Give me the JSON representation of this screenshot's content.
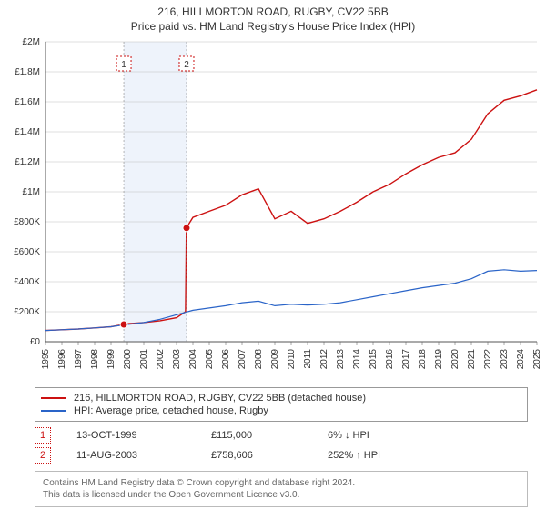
{
  "title": "216, HILLMORTON ROAD, RUGBY, CV22 5BB",
  "subtitle": "Price paid vs. HM Land Registry's House Price Index (HPI)",
  "chart": {
    "type": "line",
    "background_color": "#ffffff",
    "grid_color": "#bfbfbf",
    "highlight_band_color": "#eef3fb",
    "plot_border_color": "#555555",
    "x": {
      "min": 1995,
      "max": 2025,
      "ticks": [
        1995,
        1996,
        1997,
        1998,
        1999,
        2000,
        2001,
        2002,
        2003,
        2004,
        2005,
        2006,
        2007,
        2008,
        2009,
        2010,
        2011,
        2012,
        2013,
        2014,
        2015,
        2016,
        2017,
        2018,
        2019,
        2020,
        2021,
        2022,
        2023,
        2024,
        2025
      ]
    },
    "y": {
      "min": 0,
      "max": 2000000,
      "ticks": [
        0,
        200000,
        400000,
        600000,
        800000,
        1000000,
        1200000,
        1400000,
        1600000,
        1800000,
        2000000
      ],
      "tick_labels": [
        "£0",
        "£200K",
        "£400K",
        "£600K",
        "£800K",
        "£1M",
        "£1.2M",
        "£1.4M",
        "£1.6M",
        "£1.8M",
        "£2M"
      ]
    },
    "highlight_band": {
      "from": 1999.78,
      "to": 2003.61
    },
    "series": [
      {
        "id": "property",
        "label": "216, HILLMORTON ROAD, RUGBY, CV22 5BB (detached house)",
        "color": "#cc1111",
        "line_width": 1.4,
        "points": [
          [
            1995,
            75000
          ],
          [
            1996,
            80000
          ],
          [
            1997,
            85000
          ],
          [
            1998,
            92000
          ],
          [
            1999,
            100000
          ],
          [
            1999.78,
            115000
          ],
          [
            2000,
            120000
          ],
          [
            2001,
            128000
          ],
          [
            2002,
            140000
          ],
          [
            2003,
            160000
          ],
          [
            2003.55,
            200000
          ],
          [
            2003.6,
            758606
          ],
          [
            2004,
            830000
          ],
          [
            2005,
            870000
          ],
          [
            2006,
            910000
          ],
          [
            2007,
            980000
          ],
          [
            2008,
            1020000
          ],
          [
            2009,
            820000
          ],
          [
            2010,
            870000
          ],
          [
            2011,
            790000
          ],
          [
            2012,
            820000
          ],
          [
            2013,
            870000
          ],
          [
            2014,
            930000
          ],
          [
            2015,
            1000000
          ],
          [
            2016,
            1050000
          ],
          [
            2017,
            1120000
          ],
          [
            2018,
            1180000
          ],
          [
            2019,
            1230000
          ],
          [
            2020,
            1260000
          ],
          [
            2021,
            1350000
          ],
          [
            2022,
            1520000
          ],
          [
            2023,
            1610000
          ],
          [
            2024,
            1640000
          ],
          [
            2025,
            1680000
          ]
        ]
      },
      {
        "id": "hpi",
        "label": "HPI: Average price, detached house, Rugby",
        "color": "#2a64c8",
        "line_width": 1.2,
        "points": [
          [
            1995,
            75000
          ],
          [
            1996,
            80000
          ],
          [
            1997,
            85000
          ],
          [
            1998,
            92000
          ],
          [
            1999,
            100000
          ],
          [
            2000,
            115000
          ],
          [
            2001,
            128000
          ],
          [
            2002,
            150000
          ],
          [
            2003,
            180000
          ],
          [
            2004,
            210000
          ],
          [
            2005,
            225000
          ],
          [
            2006,
            240000
          ],
          [
            2007,
            260000
          ],
          [
            2008,
            270000
          ],
          [
            2009,
            240000
          ],
          [
            2010,
            250000
          ],
          [
            2011,
            245000
          ],
          [
            2012,
            250000
          ],
          [
            2013,
            260000
          ],
          [
            2014,
            280000
          ],
          [
            2015,
            300000
          ],
          [
            2016,
            320000
          ],
          [
            2017,
            340000
          ],
          [
            2018,
            360000
          ],
          [
            2019,
            375000
          ],
          [
            2020,
            390000
          ],
          [
            2021,
            420000
          ],
          [
            2022,
            470000
          ],
          [
            2023,
            480000
          ],
          [
            2024,
            470000
          ],
          [
            2025,
            475000
          ]
        ]
      }
    ],
    "markers": [
      {
        "num": "1",
        "x": 1999.78,
        "y": 115000,
        "color": "#cc1111",
        "label_y_offset": -0.86
      },
      {
        "num": "2",
        "x": 2003.61,
        "y": 758606,
        "color": "#cc1111",
        "label_y_offset": -0.52
      }
    ],
    "marker_badge_border": "#cc1111"
  },
  "legend": {
    "items": [
      {
        "color": "#cc1111",
        "text": "216, HILLMORTON ROAD, RUGBY, CV22 5BB (detached house)"
      },
      {
        "color": "#2a64c8",
        "text": "HPI: Average price, detached house, Rugby"
      }
    ]
  },
  "marker_rows": [
    {
      "num": "1",
      "date": "13-OCT-1999",
      "price": "£115,000",
      "delta": "6% ↓ HPI",
      "color": "#cc1111"
    },
    {
      "num": "2",
      "date": "11-AUG-2003",
      "price": "£758,606",
      "delta": "252% ↑ HPI",
      "color": "#cc1111"
    }
  ],
  "notice": {
    "line1": "Contains HM Land Registry data © Crown copyright and database right 2024.",
    "line2": "This data is licensed under the Open Government Licence v3.0."
  }
}
